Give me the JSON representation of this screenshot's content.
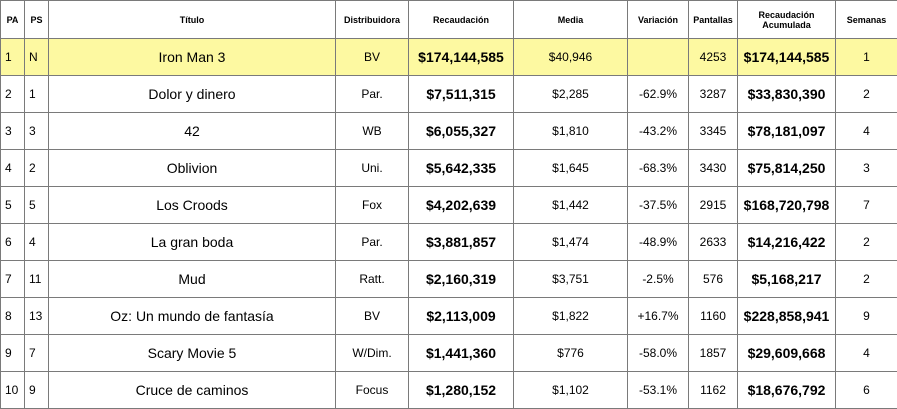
{
  "headers": {
    "pa": "PA",
    "ps": "PS",
    "titulo": "Título",
    "distribuidora": "Distribuidora",
    "recaudacion": "Recaudación",
    "media": "Media",
    "variacion": "Variación",
    "pantallas": "Pantallas",
    "recaudacion_acumulada": "Recaudación Acumulada",
    "semanas": "Semanas"
  },
  "rows": [
    {
      "pa": "1",
      "ps": "N",
      "titulo": "Iron Man 3",
      "distribuidora": "BV",
      "recaudacion": "$174,144,585",
      "media": "$40,946",
      "variacion": "",
      "pantallas": "4253",
      "acumulada": "$174,144,585",
      "semanas": "1"
    },
    {
      "pa": "2",
      "ps": "1",
      "titulo": "Dolor y dinero",
      "distribuidora": "Par.",
      "recaudacion": "$7,511,315",
      "media": "$2,285",
      "variacion": "-62.9%",
      "pantallas": "3287",
      "acumulada": "$33,830,390",
      "semanas": "2"
    },
    {
      "pa": "3",
      "ps": "3",
      "titulo": "42",
      "distribuidora": "WB",
      "recaudacion": "$6,055,327",
      "media": "$1,810",
      "variacion": "-43.2%",
      "pantallas": "3345",
      "acumulada": "$78,181,097",
      "semanas": "4"
    },
    {
      "pa": "4",
      "ps": "2",
      "titulo": "Oblivion",
      "distribuidora": "Uni.",
      "recaudacion": "$5,642,335",
      "media": "$1,645",
      "variacion": "-68.3%",
      "pantallas": "3430",
      "acumulada": "$75,814,250",
      "semanas": "3"
    },
    {
      "pa": "5",
      "ps": "5",
      "titulo": "Los Croods",
      "distribuidora": "Fox",
      "recaudacion": "$4,202,639",
      "media": "$1,442",
      "variacion": "-37.5%",
      "pantallas": "2915",
      "acumulada": "$168,720,798",
      "semanas": "7"
    },
    {
      "pa": "6",
      "ps": "4",
      "titulo": "La gran boda",
      "distribuidora": "Par.",
      "recaudacion": "$3,881,857",
      "media": "$1,474",
      "variacion": "-48.9%",
      "pantallas": "2633",
      "acumulada": "$14,216,422",
      "semanas": "2"
    },
    {
      "pa": "7",
      "ps": "11",
      "titulo": "Mud",
      "distribuidora": "Ratt.",
      "recaudacion": "$2,160,319",
      "media": "$3,751",
      "variacion": "-2.5%",
      "pantallas": "576",
      "acumulada": "$5,168,217",
      "semanas": "2"
    },
    {
      "pa": "8",
      "ps": "13",
      "titulo": "Oz: Un mundo de fantasía",
      "distribuidora": "BV",
      "recaudacion": "$2,113,009",
      "media": "$1,822",
      "variacion": "+16.7%",
      "pantallas": "1160",
      "acumulada": "$228,858,941",
      "semanas": "9"
    },
    {
      "pa": "9",
      "ps": "7",
      "titulo": "Scary Movie 5",
      "distribuidora": "W/Dim.",
      "recaudacion": "$1,441,360",
      "media": "$776",
      "variacion": "-58.0%",
      "pantallas": "1857",
      "acumulada": "$29,609,668",
      "semanas": "4"
    },
    {
      "pa": "10",
      "ps": "9",
      "titulo": "Cruce de caminos",
      "distribuidora": "Focus",
      "recaudacion": "$1,280,152",
      "media": "$1,102",
      "variacion": "-53.1%",
      "pantallas": "1162",
      "acumulada": "$18,676,792",
      "semanas": "6"
    }
  ],
  "colors": {
    "highlight_row": "#fdf9a1",
    "grid_line": "#7a7a7a"
  }
}
